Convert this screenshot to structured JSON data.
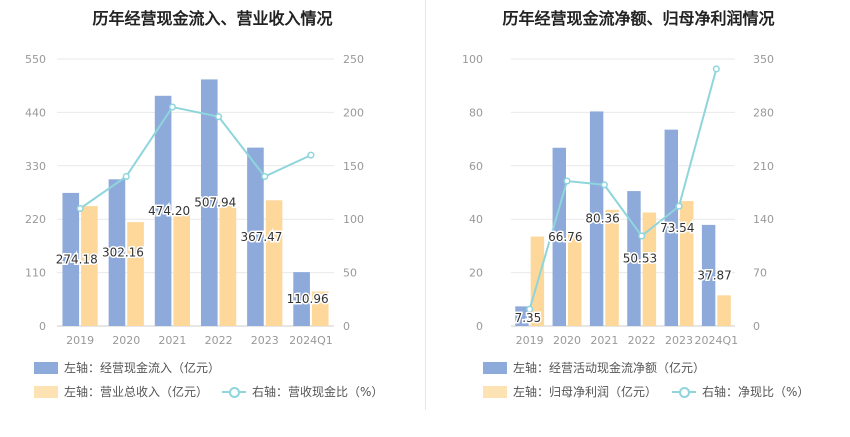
{
  "colors": {
    "primary": "#8eaadb",
    "secondary": "#fdd89a",
    "line": "#8ed5dc",
    "grid": "#e9e9e9",
    "axis": "#999999"
  },
  "panels": [
    {
      "title": "历年经营现金流入、营业收入情况",
      "legend": {
        "primary": "左轴：经营现金流入（亿元）",
        "secondary": "左轴：营业总收入（亿元）",
        "line": "右轴：营收现金比（%）"
      }
    },
    {
      "title": "历年经营现金流净额、归母净利润情况",
      "legend": {
        "primary": "左轴：经营活动现金流净额（亿元）",
        "secondary": "左轴：归母净利润（亿元）",
        "line": "右轴：净现比（%）"
      }
    }
  ],
  "chart_data": [
    {
      "type": "bar",
      "title": "历年经营现金流入、营业收入情况",
      "categories": [
        "2019",
        "2020",
        "2021",
        "2022",
        "2023",
        "2024Q1"
      ],
      "series": [
        {
          "name": "左轴：经营现金流入（亿元）",
          "axis": "left",
          "type": "bar",
          "values": [
            274.18,
            302.16,
            474.2,
            507.94,
            367.47,
            110.96
          ],
          "labels": [
            "274.18",
            "302.16",
            "474.20",
            "507.94",
            "367.47",
            "110.96"
          ]
        },
        {
          "name": "左轴：营业总收入（亿元）",
          "axis": "left",
          "type": "bar",
          "values": [
            247,
            214,
            230,
            257,
            259,
            71
          ]
        },
        {
          "name": "右轴：营收现金比（%）",
          "axis": "right",
          "type": "line",
          "values": [
            110,
            140,
            205,
            196,
            140,
            160
          ]
        }
      ],
      "left_axis": {
        "min": 0,
        "max": 550,
        "ticks": [
          "0",
          "110",
          "220",
          "330",
          "440",
          "550"
        ]
      },
      "right_axis": {
        "min": 0,
        "max": 250,
        "ticks": [
          "0",
          "50",
          "100",
          "150",
          "200",
          "250"
        ]
      },
      "grid": true
    },
    {
      "type": "bar",
      "title": "历年经营现金流净额、归母净利润情况",
      "categories": [
        "2019",
        "2020",
        "2021",
        "2022",
        "2023",
        "2024Q1"
      ],
      "series": [
        {
          "name": "左轴：经营活动现金流净额（亿元）",
          "axis": "left",
          "type": "bar",
          "values": [
            7.35,
            66.76,
            80.36,
            50.53,
            73.54,
            37.87
          ],
          "labels": [
            "7.35",
            "66.76",
            "80.36",
            "50.53",
            "73.54",
            "37.87"
          ]
        },
        {
          "name": "左轴：归母净利润（亿元）",
          "axis": "left",
          "type": "bar",
          "values": [
            33.5,
            35,
            43.5,
            42.5,
            46.8,
            11.5
          ]
        },
        {
          "name": "右轴：净现比（%）",
          "axis": "right",
          "type": "line",
          "values": [
            22,
            190,
            185,
            118,
            157,
            337
          ]
        }
      ],
      "left_axis": {
        "min": 0,
        "max": 100,
        "ticks": [
          "0",
          "20",
          "40",
          "60",
          "80",
          "100"
        ]
      },
      "right_axis": {
        "min": 0,
        "max": 350,
        "ticks": [
          "0",
          "70",
          "140",
          "210",
          "280",
          "350"
        ]
      },
      "grid": true
    }
  ]
}
